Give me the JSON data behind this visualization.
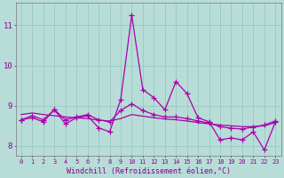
{
  "xlabel": "Windchill (Refroidissement éolien,°C)",
  "background_color": "#b8ddd8",
  "grid_color": "#9bccc4",
  "line_color": "#aa00aa",
  "x_values": [
    0,
    1,
    2,
    3,
    4,
    5,
    6,
    7,
    8,
    9,
    10,
    11,
    12,
    13,
    14,
    15,
    16,
    17,
    18,
    19,
    20,
    21,
    22,
    23
  ],
  "y_jagged": [
    8.65,
    8.7,
    8.6,
    8.9,
    8.55,
    8.7,
    8.75,
    8.45,
    8.35,
    9.15,
    11.25,
    9.4,
    9.2,
    8.9,
    9.6,
    9.3,
    8.7,
    8.6,
    8.15,
    8.2,
    8.15,
    8.35,
    7.9,
    8.6
  ],
  "y_smooth": [
    8.65,
    8.75,
    8.65,
    8.9,
    8.65,
    8.72,
    8.78,
    8.65,
    8.6,
    8.88,
    9.05,
    8.88,
    8.78,
    8.72,
    8.72,
    8.68,
    8.62,
    8.57,
    8.48,
    8.44,
    8.42,
    8.47,
    8.52,
    8.62
  ],
  "y_trend": [
    8.78,
    8.82,
    8.78,
    8.75,
    8.72,
    8.7,
    8.68,
    8.64,
    8.62,
    8.68,
    8.78,
    8.74,
    8.7,
    8.67,
    8.65,
    8.62,
    8.58,
    8.55,
    8.52,
    8.5,
    8.48,
    8.48,
    8.5,
    8.58
  ],
  "ylim": [
    7.75,
    11.55
  ],
  "yticks": [
    8,
    9,
    10,
    11
  ],
  "xlim": [
    -0.5,
    23.5
  ]
}
